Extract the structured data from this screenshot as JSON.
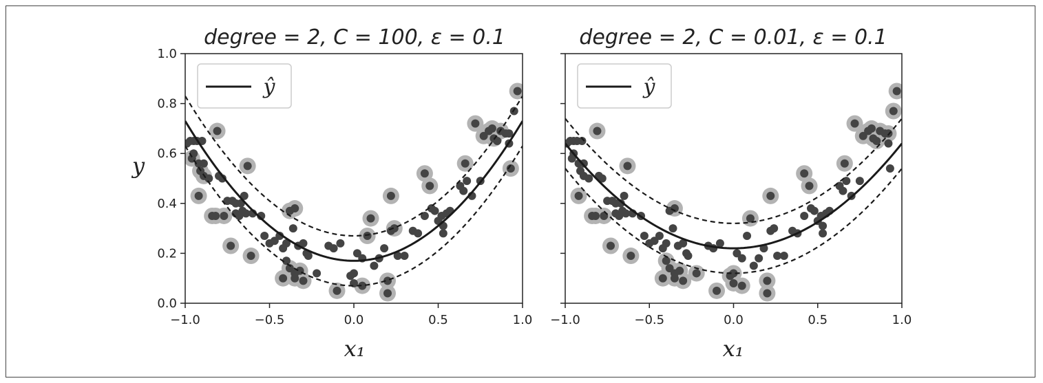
{
  "chart_data": [
    {
      "type": "scatter",
      "title": "degree = 2, C = 100, ε = 0.1",
      "xlabel": "x₁",
      "ylabel": "y",
      "xlim": [
        -1.0,
        1.0
      ],
      "ylim": [
        0.0,
        1.0
      ],
      "xticks": [
        "−1.0",
        "−0.5",
        "0.0",
        "0.5",
        "1.0"
      ],
      "yticks": [
        "0.0",
        "0.2",
        "0.4",
        "0.6",
        "0.8",
        "1.0"
      ],
      "legend": {
        "position": "upper-left",
        "entries": [
          "ŷ"
        ]
      },
      "model": {
        "a": 0.56,
        "b": 0.0,
        "c": 0.17,
        "epsilon": 0.1
      },
      "support_vectors_shown": true,
      "points": [
        [
          -0.99,
          0.64
        ],
        [
          -0.97,
          0.65
        ],
        [
          -0.95,
          0.65
        ],
        [
          -0.93,
          0.65
        ],
        [
          -0.9,
          0.65
        ],
        [
          -0.95,
          0.6
        ],
        [
          -0.96,
          0.58
        ],
        [
          -0.92,
          0.56
        ],
        [
          -0.89,
          0.56
        ],
        [
          -0.91,
          0.53
        ],
        [
          -0.89,
          0.51
        ],
        [
          -0.86,
          0.5
        ],
        [
          -0.81,
          0.69
        ],
        [
          -0.8,
          0.51
        ],
        [
          -0.78,
          0.5
        ],
        [
          -0.92,
          0.43
        ],
        [
          -0.75,
          0.41
        ],
        [
          -0.72,
          0.41
        ],
        [
          -0.7,
          0.4
        ],
        [
          -0.67,
          0.4
        ],
        [
          -0.65,
          0.43
        ],
        [
          -0.7,
          0.36
        ],
        [
          -0.68,
          0.35
        ],
        [
          -0.66,
          0.37
        ],
        [
          -0.64,
          0.36
        ],
        [
          -0.6,
          0.36
        ],
        [
          -0.77,
          0.35
        ],
        [
          -0.84,
          0.35
        ],
        [
          -0.82,
          0.35
        ],
        [
          -0.63,
          0.55
        ],
        [
          -0.73,
          0.23
        ],
        [
          -0.61,
          0.19
        ],
        [
          -0.55,
          0.35
        ],
        [
          -0.53,
          0.27
        ],
        [
          -0.5,
          0.24
        ],
        [
          -0.47,
          0.25
        ],
        [
          -0.44,
          0.27
        ],
        [
          -0.42,
          0.22
        ],
        [
          -0.4,
          0.24
        ],
        [
          -0.38,
          0.37
        ],
        [
          -0.35,
          0.38
        ],
        [
          -0.36,
          0.3
        ],
        [
          -0.33,
          0.23
        ],
        [
          -0.3,
          0.24
        ],
        [
          -0.28,
          0.2
        ],
        [
          -0.27,
          0.19
        ],
        [
          -0.4,
          0.17
        ],
        [
          -0.38,
          0.14
        ],
        [
          -0.35,
          0.12
        ],
        [
          -0.32,
          0.13
        ],
        [
          -0.42,
          0.1
        ],
        [
          -0.35,
          0.1
        ],
        [
          -0.3,
          0.09
        ],
        [
          -0.22,
          0.12
        ],
        [
          -0.15,
          0.23
        ],
        [
          -0.12,
          0.22
        ],
        [
          -0.08,
          0.24
        ],
        [
          -0.1,
          0.05
        ],
        [
          -0.02,
          0.11
        ],
        [
          0.0,
          0.12
        ],
        [
          0.02,
          0.2
        ],
        [
          0.05,
          0.18
        ],
        [
          0.05,
          0.07
        ],
        [
          0.0,
          0.08
        ],
        [
          0.08,
          0.27
        ],
        [
          0.1,
          0.34
        ],
        [
          0.12,
          0.15
        ],
        [
          0.15,
          0.18
        ],
        [
          0.18,
          0.22
        ],
        [
          0.2,
          0.09
        ],
        [
          0.2,
          0.04
        ],
        [
          0.22,
          0.43
        ],
        [
          0.22,
          0.29
        ],
        [
          0.24,
          0.3
        ],
        [
          0.26,
          0.19
        ],
        [
          0.3,
          0.19
        ],
        [
          0.35,
          0.29
        ],
        [
          0.38,
          0.28
        ],
        [
          0.42,
          0.52
        ],
        [
          0.45,
          0.47
        ],
        [
          0.42,
          0.35
        ],
        [
          0.46,
          0.38
        ],
        [
          0.48,
          0.37
        ],
        [
          0.5,
          0.33
        ],
        [
          0.52,
          0.35
        ],
        [
          0.53,
          0.31
        ],
        [
          0.53,
          0.28
        ],
        [
          0.55,
          0.36
        ],
        [
          0.57,
          0.37
        ],
        [
          0.63,
          0.47
        ],
        [
          0.65,
          0.45
        ],
        [
          0.67,
          0.49
        ],
        [
          0.66,
          0.56
        ],
        [
          0.7,
          0.43
        ],
        [
          0.72,
          0.72
        ],
        [
          0.75,
          0.49
        ],
        [
          0.77,
          0.67
        ],
        [
          0.8,
          0.69
        ],
        [
          0.82,
          0.7
        ],
        [
          0.83,
          0.66
        ],
        [
          0.85,
          0.65
        ],
        [
          0.87,
          0.69
        ],
        [
          0.9,
          0.68
        ],
        [
          0.92,
          0.68
        ],
        [
          0.92,
          0.64
        ],
        [
          0.93,
          0.54
        ],
        [
          0.95,
          0.77
        ],
        [
          0.97,
          0.85
        ]
      ]
    },
    {
      "type": "scatter",
      "title": "degree = 2, C = 0.01, ε = 0.1",
      "xlabel": "x₁",
      "ylabel": "",
      "xlim": [
        -1.0,
        1.0
      ],
      "ylim": [
        0.0,
        1.0
      ],
      "xticks": [
        "−1.0",
        "−0.5",
        "0.0",
        "0.5",
        "1.0"
      ],
      "yticks": [],
      "legend": {
        "position": "upper-left",
        "entries": [
          "ŷ"
        ]
      },
      "model": {
        "a": 0.42,
        "b": 0.0,
        "c": 0.22,
        "epsilon": 0.1
      },
      "support_vectors_shown": true,
      "points": [
        [
          -0.99,
          0.64
        ],
        [
          -0.97,
          0.65
        ],
        [
          -0.95,
          0.65
        ],
        [
          -0.93,
          0.65
        ],
        [
          -0.9,
          0.65
        ],
        [
          -0.95,
          0.6
        ],
        [
          -0.96,
          0.58
        ],
        [
          -0.92,
          0.56
        ],
        [
          -0.89,
          0.56
        ],
        [
          -0.91,
          0.53
        ],
        [
          -0.89,
          0.51
        ],
        [
          -0.86,
          0.5
        ],
        [
          -0.81,
          0.69
        ],
        [
          -0.8,
          0.51
        ],
        [
          -0.78,
          0.5
        ],
        [
          -0.92,
          0.43
        ],
        [
          -0.75,
          0.41
        ],
        [
          -0.72,
          0.41
        ],
        [
          -0.7,
          0.4
        ],
        [
          -0.67,
          0.4
        ],
        [
          -0.65,
          0.43
        ],
        [
          -0.7,
          0.36
        ],
        [
          -0.68,
          0.35
        ],
        [
          -0.66,
          0.37
        ],
        [
          -0.64,
          0.36
        ],
        [
          -0.6,
          0.36
        ],
        [
          -0.77,
          0.35
        ],
        [
          -0.84,
          0.35
        ],
        [
          -0.82,
          0.35
        ],
        [
          -0.63,
          0.55
        ],
        [
          -0.73,
          0.23
        ],
        [
          -0.61,
          0.19
        ],
        [
          -0.55,
          0.35
        ],
        [
          -0.53,
          0.27
        ],
        [
          -0.5,
          0.24
        ],
        [
          -0.47,
          0.25
        ],
        [
          -0.44,
          0.27
        ],
        [
          -0.42,
          0.22
        ],
        [
          -0.4,
          0.24
        ],
        [
          -0.38,
          0.37
        ],
        [
          -0.35,
          0.38
        ],
        [
          -0.36,
          0.3
        ],
        [
          -0.33,
          0.23
        ],
        [
          -0.3,
          0.24
        ],
        [
          -0.28,
          0.2
        ],
        [
          -0.27,
          0.19
        ],
        [
          -0.4,
          0.17
        ],
        [
          -0.38,
          0.14
        ],
        [
          -0.35,
          0.12
        ],
        [
          -0.32,
          0.13
        ],
        [
          -0.42,
          0.1
        ],
        [
          -0.35,
          0.1
        ],
        [
          -0.3,
          0.09
        ],
        [
          -0.22,
          0.12
        ],
        [
          -0.15,
          0.23
        ],
        [
          -0.12,
          0.22
        ],
        [
          -0.08,
          0.24
        ],
        [
          -0.1,
          0.05
        ],
        [
          -0.02,
          0.11
        ],
        [
          0.0,
          0.12
        ],
        [
          0.02,
          0.2
        ],
        [
          0.05,
          0.18
        ],
        [
          0.05,
          0.07
        ],
        [
          0.0,
          0.08
        ],
        [
          0.08,
          0.27
        ],
        [
          0.1,
          0.34
        ],
        [
          0.12,
          0.15
        ],
        [
          0.15,
          0.18
        ],
        [
          0.18,
          0.22
        ],
        [
          0.2,
          0.09
        ],
        [
          0.2,
          0.04
        ],
        [
          0.22,
          0.43
        ],
        [
          0.22,
          0.29
        ],
        [
          0.24,
          0.3
        ],
        [
          0.26,
          0.19
        ],
        [
          0.3,
          0.19
        ],
        [
          0.35,
          0.29
        ],
        [
          0.38,
          0.28
        ],
        [
          0.42,
          0.52
        ],
        [
          0.45,
          0.47
        ],
        [
          0.42,
          0.35
        ],
        [
          0.46,
          0.38
        ],
        [
          0.48,
          0.37
        ],
        [
          0.5,
          0.33
        ],
        [
          0.52,
          0.35
        ],
        [
          0.53,
          0.31
        ],
        [
          0.53,
          0.28
        ],
        [
          0.55,
          0.36
        ],
        [
          0.57,
          0.37
        ],
        [
          0.63,
          0.47
        ],
        [
          0.65,
          0.45
        ],
        [
          0.67,
          0.49
        ],
        [
          0.66,
          0.56
        ],
        [
          0.7,
          0.43
        ],
        [
          0.72,
          0.72
        ],
        [
          0.75,
          0.49
        ],
        [
          0.77,
          0.67
        ],
        [
          0.8,
          0.69
        ],
        [
          0.82,
          0.7
        ],
        [
          0.83,
          0.66
        ],
        [
          0.85,
          0.65
        ],
        [
          0.87,
          0.69
        ],
        [
          0.9,
          0.68
        ],
        [
          0.92,
          0.68
        ],
        [
          0.92,
          0.64
        ],
        [
          0.93,
          0.54
        ],
        [
          0.95,
          0.77
        ],
        [
          0.97,
          0.85
        ]
      ]
    }
  ],
  "colors": {
    "point": "#444444",
    "support_vector_halo": "#b3b3b3",
    "fit_line": "#1a1a1a",
    "margin_line": "#1a1a1a",
    "axis": "#222222"
  }
}
